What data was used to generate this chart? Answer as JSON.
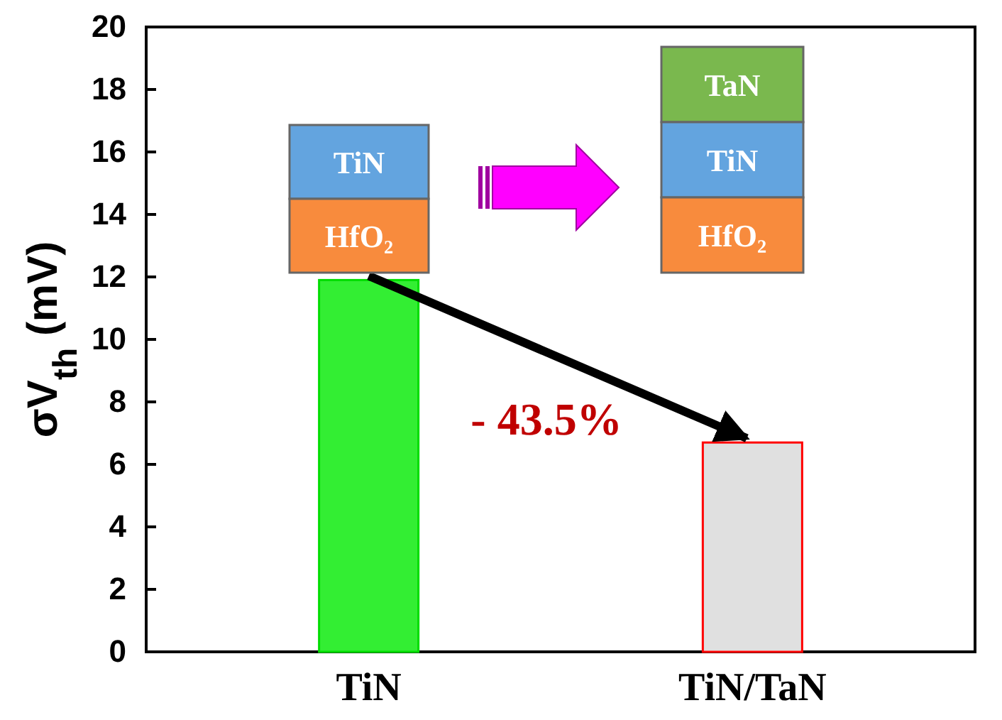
{
  "chart_data": {
    "type": "bar",
    "categories": [
      "TiN",
      "TiN/TaN"
    ],
    "values": [
      11.9,
      6.7
    ],
    "colors": [
      "#33ee33",
      "#e0e0e0"
    ],
    "ylabel": "σV$_{th}$ (mV)",
    "ylim": [
      0,
      20
    ],
    "yticks": [
      0,
      2,
      4,
      6,
      8,
      10,
      12,
      14,
      16,
      18,
      20
    ],
    "grid": false,
    "annotations": [
      "TiN",
      "HfO₂",
      "TaN",
      "TiN",
      "HfO₂",
      "- 43.5%"
    ]
  }
}
